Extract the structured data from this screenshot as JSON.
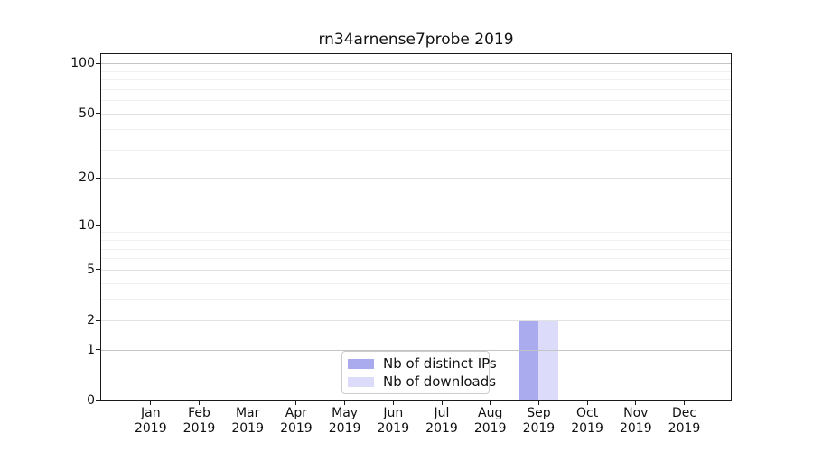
{
  "chart_data": {
    "type": "bar",
    "title": "rn34arnense7probe 2019",
    "scale": "log1p",
    "categories": [
      "Jan",
      "Feb",
      "Mar",
      "Apr",
      "May",
      "Jun",
      "Jul",
      "Aug",
      "Sep",
      "Oct",
      "Nov",
      "Dec"
    ],
    "x_year": "2019",
    "series": [
      {
        "name": "Nb of distinct IPs",
        "color": "#aaaaee",
        "values": [
          0,
          0,
          0,
          0,
          0,
          0,
          0,
          0,
          2,
          0,
          0,
          0
        ]
      },
      {
        "name": "Nb of downloads",
        "color": "#dcdcfa",
        "values": [
          0,
          0,
          0,
          0,
          0,
          0,
          0,
          0,
          2,
          0,
          0,
          0
        ]
      }
    ],
    "yticks": [
      0,
      1,
      2,
      5,
      10,
      20,
      50,
      100
    ],
    "minor_gridlines": [
      3,
      4,
      6,
      7,
      8,
      9,
      30,
      40,
      60,
      70,
      80,
      90
    ],
    "ylim": [
      0,
      114
    ],
    "xlabel": "",
    "ylabel": "",
    "grid": "horizontal",
    "legend_position": "lower center"
  }
}
